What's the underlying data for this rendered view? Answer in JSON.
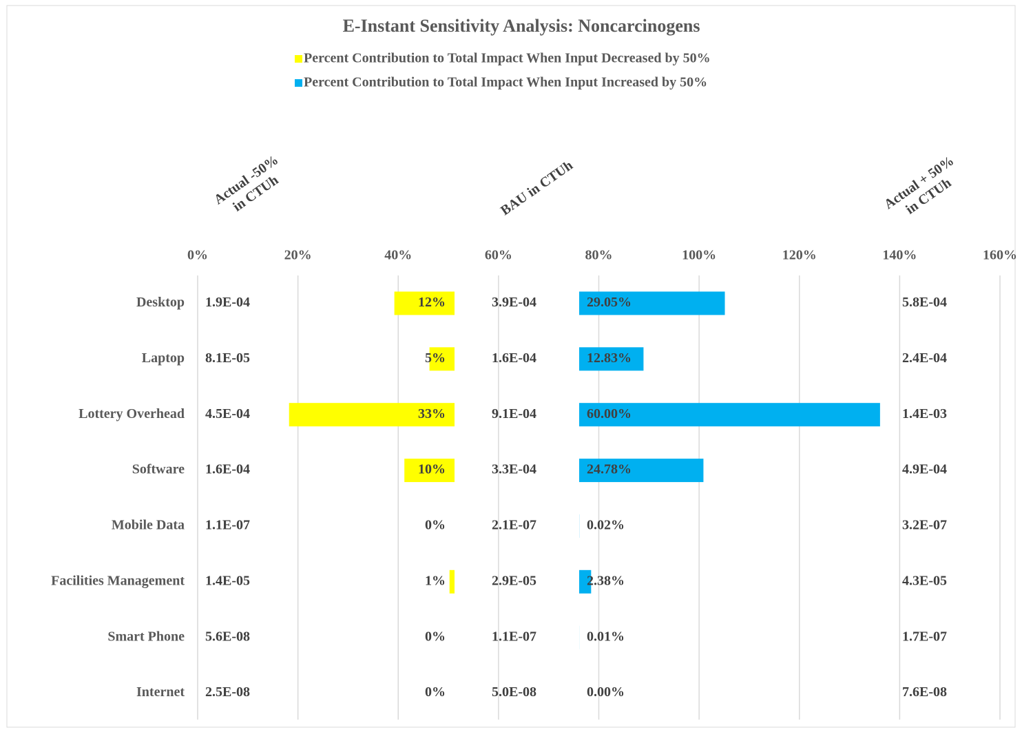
{
  "chart_data": {
    "type": "bar",
    "orientation": "horizontal",
    "title": "E-Instant Sensitivity Analysis: Noncarcinogens",
    "categories": [
      "Desktop",
      "Laptop",
      "Lottery Overhead",
      "Software",
      "Mobile Data",
      "Facilities Management",
      "Smart Phone",
      "Internet"
    ],
    "series": [
      {
        "name": "Percent Contribution to Total Impact When Input Decreased by 50%",
        "color": "#ffff00",
        "values": [
          12,
          5,
          33,
          10,
          0,
          1,
          0,
          0
        ],
        "value_labels": [
          "12%",
          "5%",
          "33%",
          "10%",
          "0%",
          "1%",
          "0%",
          "0%"
        ]
      },
      {
        "name": "Percent Contribution to Total Impact When Input Increased by 50%",
        "color": "#00b0f0",
        "values": [
          29.05,
          12.83,
          60.0,
          24.78,
          0.02,
          2.38,
          0.01,
          0.0
        ],
        "value_labels": [
          "29.05%",
          "12.83%",
          "60.00%",
          "24.78%",
          "0.02%",
          "2.38%",
          "0.01%",
          "0.00%"
        ]
      }
    ],
    "columns": [
      {
        "header": [
          "Actual -50%",
          "in CTUh"
        ],
        "values": [
          "1.9E-04",
          "8.1E-05",
          "4.5E-04",
          "1.6E-04",
          "1.1E-07",
          "1.4E-05",
          "5.6E-08",
          "2.5E-08"
        ]
      },
      {
        "header": [
          "BAU in CTUh"
        ],
        "values": [
          "3.9E-04",
          "1.6E-04",
          "9.1E-04",
          "3.3E-04",
          "2.1E-07",
          "2.9E-05",
          "1.1E-07",
          "5.0E-08"
        ]
      },
      {
        "header": [
          "Actual + 50%",
          "in CTUh"
        ],
        "values": [
          "5.8E-04",
          "2.4E-04",
          "1.4E-03",
          "4.9E-04",
          "3.2E-07",
          "4.3E-05",
          "1.7E-07",
          "7.6E-08"
        ]
      }
    ],
    "xlim": [
      0,
      160
    ],
    "xticks": [
      {
        "value": 0,
        "label": "0%"
      },
      {
        "value": 20,
        "label": "20%"
      },
      {
        "value": 40,
        "label": "40%"
      },
      {
        "value": 60,
        "label": "60%"
      },
      {
        "value": 80,
        "label": "80%"
      },
      {
        "value": 100,
        "label": "100%"
      },
      {
        "value": 120,
        "label": "120%"
      },
      {
        "value": 140,
        "label": "140%"
      },
      {
        "value": 160,
        "label": "160%"
      }
    ],
    "grid": true,
    "legend": "top"
  }
}
